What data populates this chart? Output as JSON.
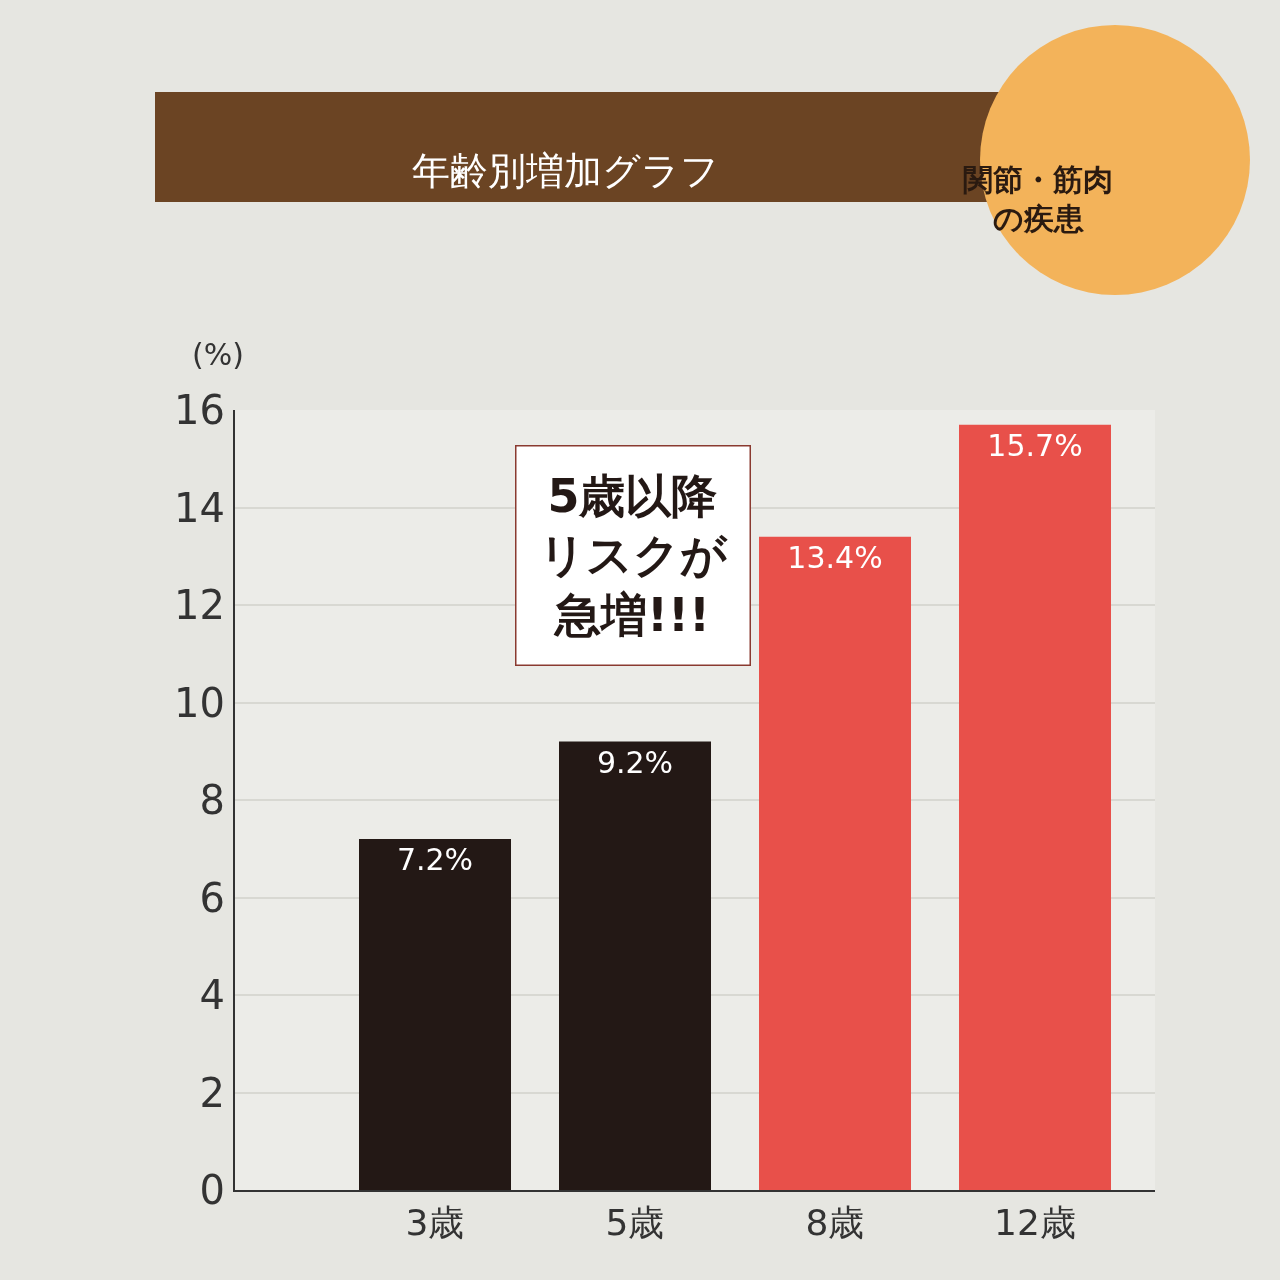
{
  "chart_data": {
    "type": "bar",
    "title": "年齢別増加グラフ",
    "ylabel": "(%)",
    "categories": [
      "3歳",
      "5歳",
      "8歳",
      "12歳"
    ],
    "values": [
      7.2,
      9.2,
      13.4,
      15.7
    ],
    "colors": [
      "#231815",
      "#231815",
      "#e8504a",
      "#e8504a"
    ],
    "value_labels": [
      "7.2%",
      "9.2%",
      "13.4%",
      "15.7%"
    ],
    "ylim": [
      0,
      16
    ],
    "yticks": [
      0,
      2,
      4,
      6,
      8,
      10,
      12,
      14,
      16
    ],
    "grid": "y",
    "annotations": [
      "関節・筋肉の疾患",
      "5歳以降リスクが急増!!!"
    ]
  }
}
